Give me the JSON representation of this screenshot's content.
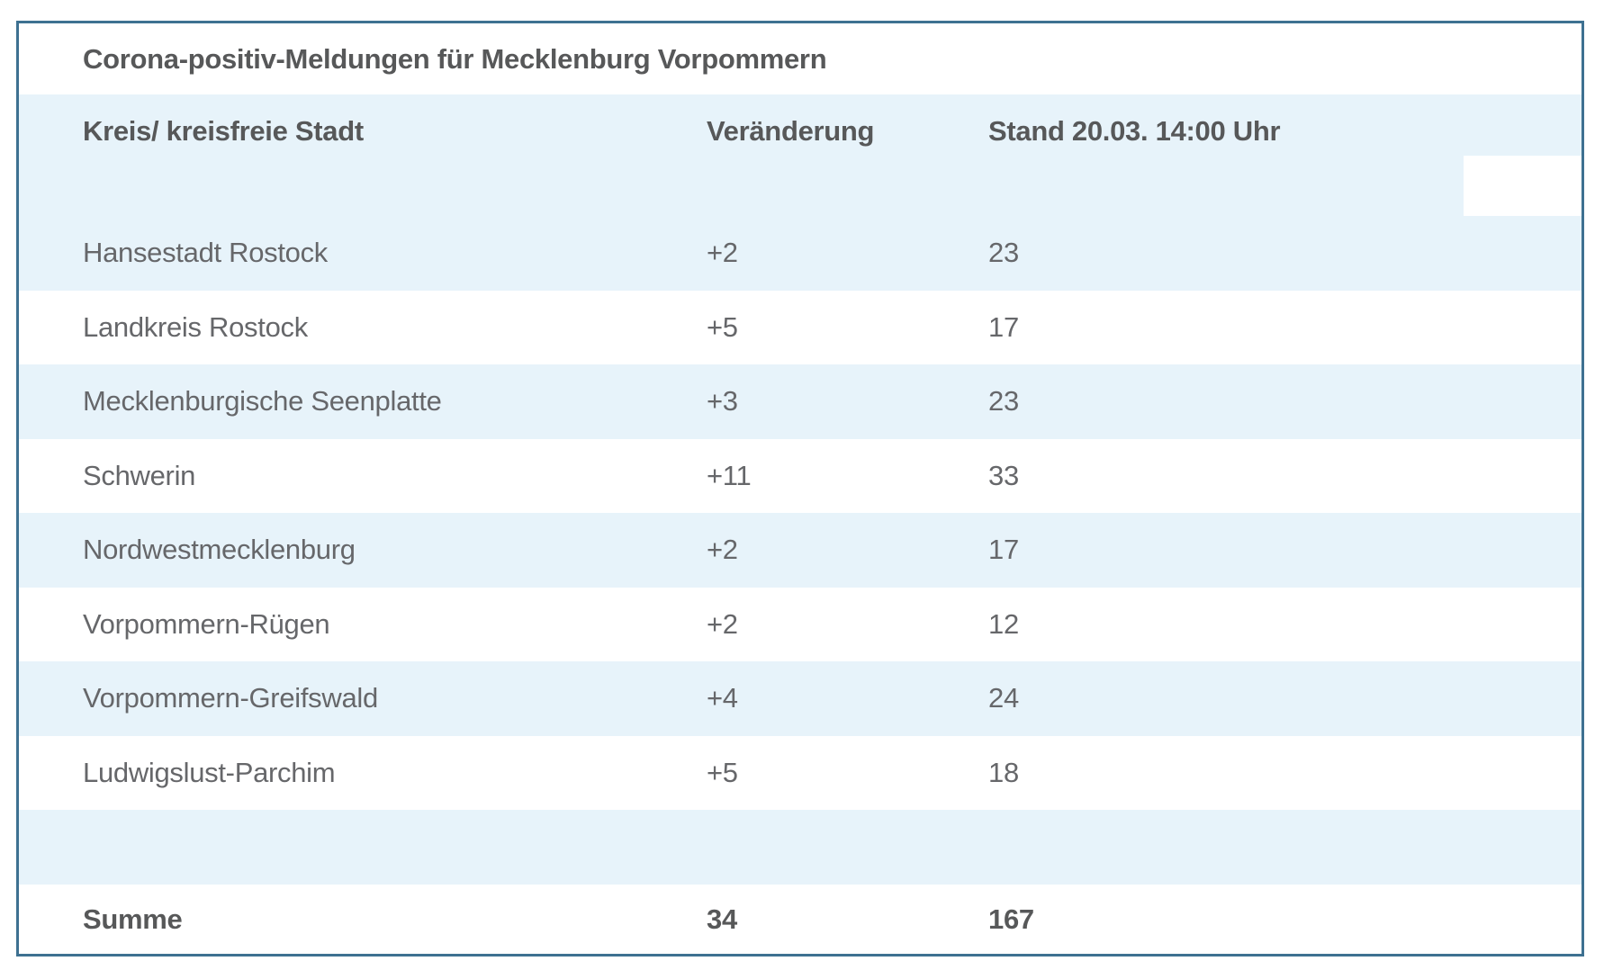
{
  "chart_data": {
    "type": "table",
    "title": "Corona-positiv-Meldungen für Mecklenburg Vorpommern",
    "columns": [
      "Kreis/ kreisfreie Stadt",
      "Veränderung",
      "Stand 20.03. 14:00 Uhr"
    ],
    "categories": [
      "Hansestadt Rostock",
      "Landkreis Rostock",
      "Mecklenburgische Seenplatte",
      "Schwerin",
      "Nordwestmecklenburg",
      "Vorpommern-Rügen",
      "Vorpommern-Greifswald",
      "Ludwigslust-Parchim"
    ],
    "series": [
      {
        "name": "Veränderung",
        "values": [
          2,
          5,
          3,
          11,
          2,
          2,
          4,
          5
        ]
      },
      {
        "name": "Stand 20.03. 14:00 Uhr",
        "values": [
          23,
          17,
          23,
          33,
          17,
          12,
          24,
          18
        ]
      }
    ],
    "totals": {
      "label": "Summe",
      "veraenderung": 34,
      "stand": 167
    },
    "layout_hints": {
      "striped": true,
      "stripe_color": "#e7f3fa",
      "border_color": "#3e7191"
    }
  },
  "table": {
    "title": "Corona-positiv-Meldungen für Mecklenburg Vorpommern",
    "header": {
      "col1": "Kreis/ kreisfreie Stadt",
      "col2": "Veränderung",
      "col3": "Stand 20.03. 14:00 Uhr"
    },
    "rows": [
      {
        "name": "Hansestadt Rostock",
        "change": "+2",
        "count": "23"
      },
      {
        "name": "Landkreis Rostock",
        "change": "+5",
        "count": "17"
      },
      {
        "name": "Mecklenburgische Seenplatte",
        "change": "+3",
        "count": "23"
      },
      {
        "name": "Schwerin",
        "change": "+11",
        "count": "33"
      },
      {
        "name": "Nordwestmecklenburg",
        "change": "+2",
        "count": "17"
      },
      {
        "name": "Vorpommern-Rügen",
        "change": "+2",
        "count": "12"
      },
      {
        "name": "Vorpommern-Greifswald",
        "change": "+4",
        "count": "24"
      },
      {
        "name": "Ludwigslust-Parchim",
        "change": "+5",
        "count": "18"
      }
    ],
    "summary": {
      "label": "Summe",
      "change": "34",
      "count": "167"
    }
  },
  "colors": {
    "border": "#3e7191",
    "row_alt": "#e7f3fa",
    "heading_text": "#575859",
    "body_text": "#66676a"
  }
}
